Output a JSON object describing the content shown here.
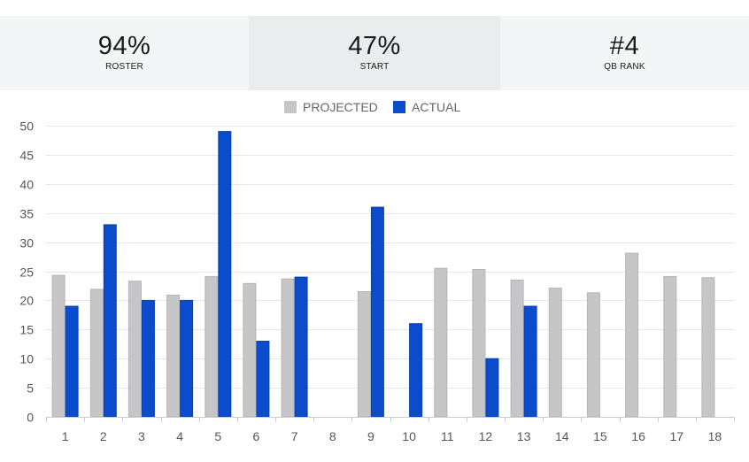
{
  "stats": [
    {
      "value": "94%",
      "label": "ROSTER"
    },
    {
      "value": "47%",
      "label": "START"
    },
    {
      "value": "#4",
      "label": "QB RANK"
    }
  ],
  "colors": {
    "projected": "#c6c6c8",
    "actual": "#0a4ccc"
  },
  "chart_data": {
    "type": "bar",
    "title": "",
    "xlabel": "",
    "ylabel": "",
    "ylim": [
      0,
      50
    ],
    "yticks": [
      "0",
      "5",
      "10",
      "15",
      "20",
      "25",
      "30",
      "35",
      "40",
      "45",
      "50"
    ],
    "grid": true,
    "legend_position": "top-center",
    "categories": [
      "1",
      "2",
      "3",
      "4",
      "5",
      "6",
      "7",
      "8",
      "9",
      "10",
      "11",
      "12",
      "13",
      "14",
      "15",
      "16",
      "17",
      "18"
    ],
    "series": [
      {
        "name": "PROJECTED",
        "values": [
          24.3,
          21.9,
          23.3,
          20.9,
          24.1,
          22.9,
          23.7,
          null,
          21.5,
          null,
          25.5,
          25.3,
          23.5,
          22.1,
          21.3,
          28.1,
          24.1,
          23.9
        ]
      },
      {
        "name": "ACTUAL",
        "values": [
          19,
          33,
          20,
          20,
          49,
          13,
          24,
          null,
          36,
          16,
          null,
          10,
          19,
          null,
          null,
          null,
          null,
          null
        ]
      }
    ]
  }
}
